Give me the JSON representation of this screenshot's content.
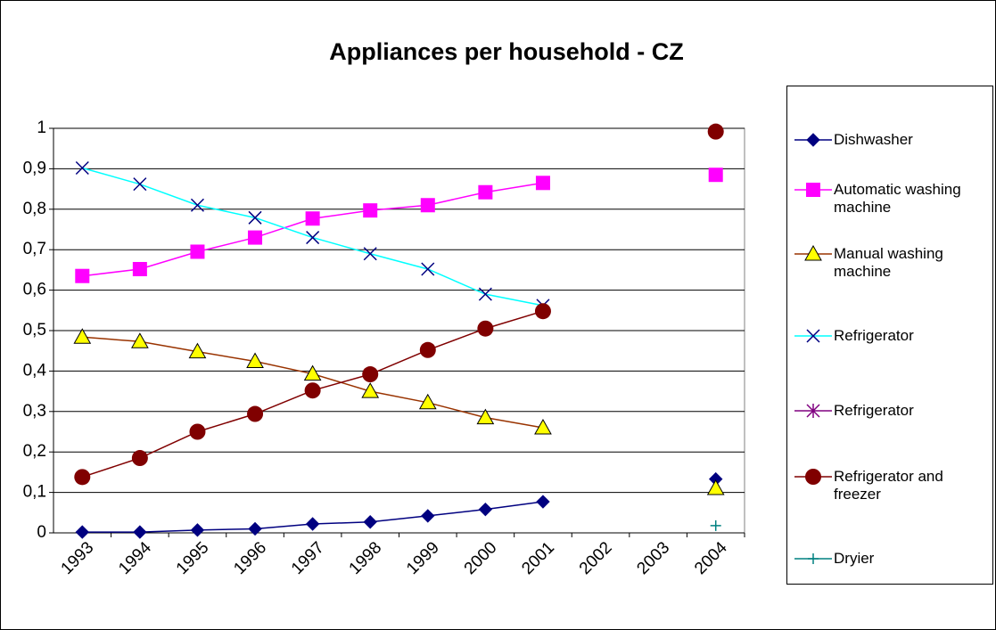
{
  "chart_data": {
    "type": "line",
    "title": "Appliances per household - CZ",
    "categories": [
      "1993",
      "1994",
      "1995",
      "1996",
      "1997",
      "1998",
      "1999",
      "2000",
      "2001",
      "2002",
      "2003",
      "2004"
    ],
    "series": [
      {
        "name": "Dishwasher",
        "color": "#000080",
        "marker": "diamond",
        "marker_color": "#000080",
        "values": [
          0.002,
          0.002,
          0.007,
          0.01,
          0.022,
          0.027,
          0.042,
          0.058,
          0.077,
          null,
          null,
          0.133
        ]
      },
      {
        "name": "Automatic washing machine",
        "color": "#ff00ff",
        "marker": "square",
        "marker_color": "#ff00ff",
        "values": [
          0.635,
          0.652,
          0.695,
          0.73,
          0.777,
          0.797,
          0.81,
          0.842,
          0.865,
          null,
          null,
          0.885
        ]
      },
      {
        "name": "Manual washing machine",
        "color": "#993300",
        "marker": "triangle",
        "marker_color": "#ffff00",
        "values": [
          0.484,
          0.473,
          0.448,
          0.424,
          0.393,
          0.35,
          0.322,
          0.285,
          0.26,
          null,
          null,
          0.11
        ]
      },
      {
        "name": "Refrigerator",
        "color": "#00ffff",
        "marker": "x",
        "marker_color": "#000080",
        "values": [
          0.902,
          0.862,
          0.81,
          0.779,
          0.73,
          0.69,
          0.652,
          0.59,
          0.562,
          null,
          null,
          null
        ]
      },
      {
        "name": "Refrigerator",
        "color": "#800080",
        "marker": "star",
        "marker_color": "#800080",
        "values": [
          null,
          null,
          null,
          null,
          null,
          null,
          null,
          null,
          null,
          null,
          null,
          null
        ]
      },
      {
        "name": "Refrigerator and freezer",
        "color": "#800000",
        "marker": "circle",
        "marker_color": "#800000",
        "values": [
          0.138,
          0.185,
          0.25,
          0.294,
          0.352,
          0.392,
          0.452,
          0.505,
          0.548,
          null,
          null,
          0.992
        ]
      },
      {
        "name": "Dryier",
        "color": "#008080",
        "marker": "plus",
        "marker_color": "#008080",
        "values": [
          null,
          null,
          null,
          null,
          null,
          null,
          null,
          null,
          null,
          null,
          null,
          0.018
        ]
      }
    ],
    "ylim": [
      0,
      1
    ],
    "yticks": [
      0,
      {
        "value": 0.1,
        "label": "0,1"
      },
      {
        "value": 0.2,
        "label": "0,2"
      },
      {
        "value": 0.3,
        "label": "0,3"
      },
      {
        "value": 0.4,
        "label": "0,4"
      },
      {
        "value": 0.5,
        "label": "0,5"
      },
      {
        "value": 0.6,
        "label": "0,6"
      },
      {
        "value": 0.7,
        "label": "0,7"
      },
      {
        "value": 0.8,
        "label": "0,8"
      },
      {
        "value": 0.9,
        "label": "0,9"
      },
      1
    ],
    "grid": true,
    "legend": "right"
  }
}
